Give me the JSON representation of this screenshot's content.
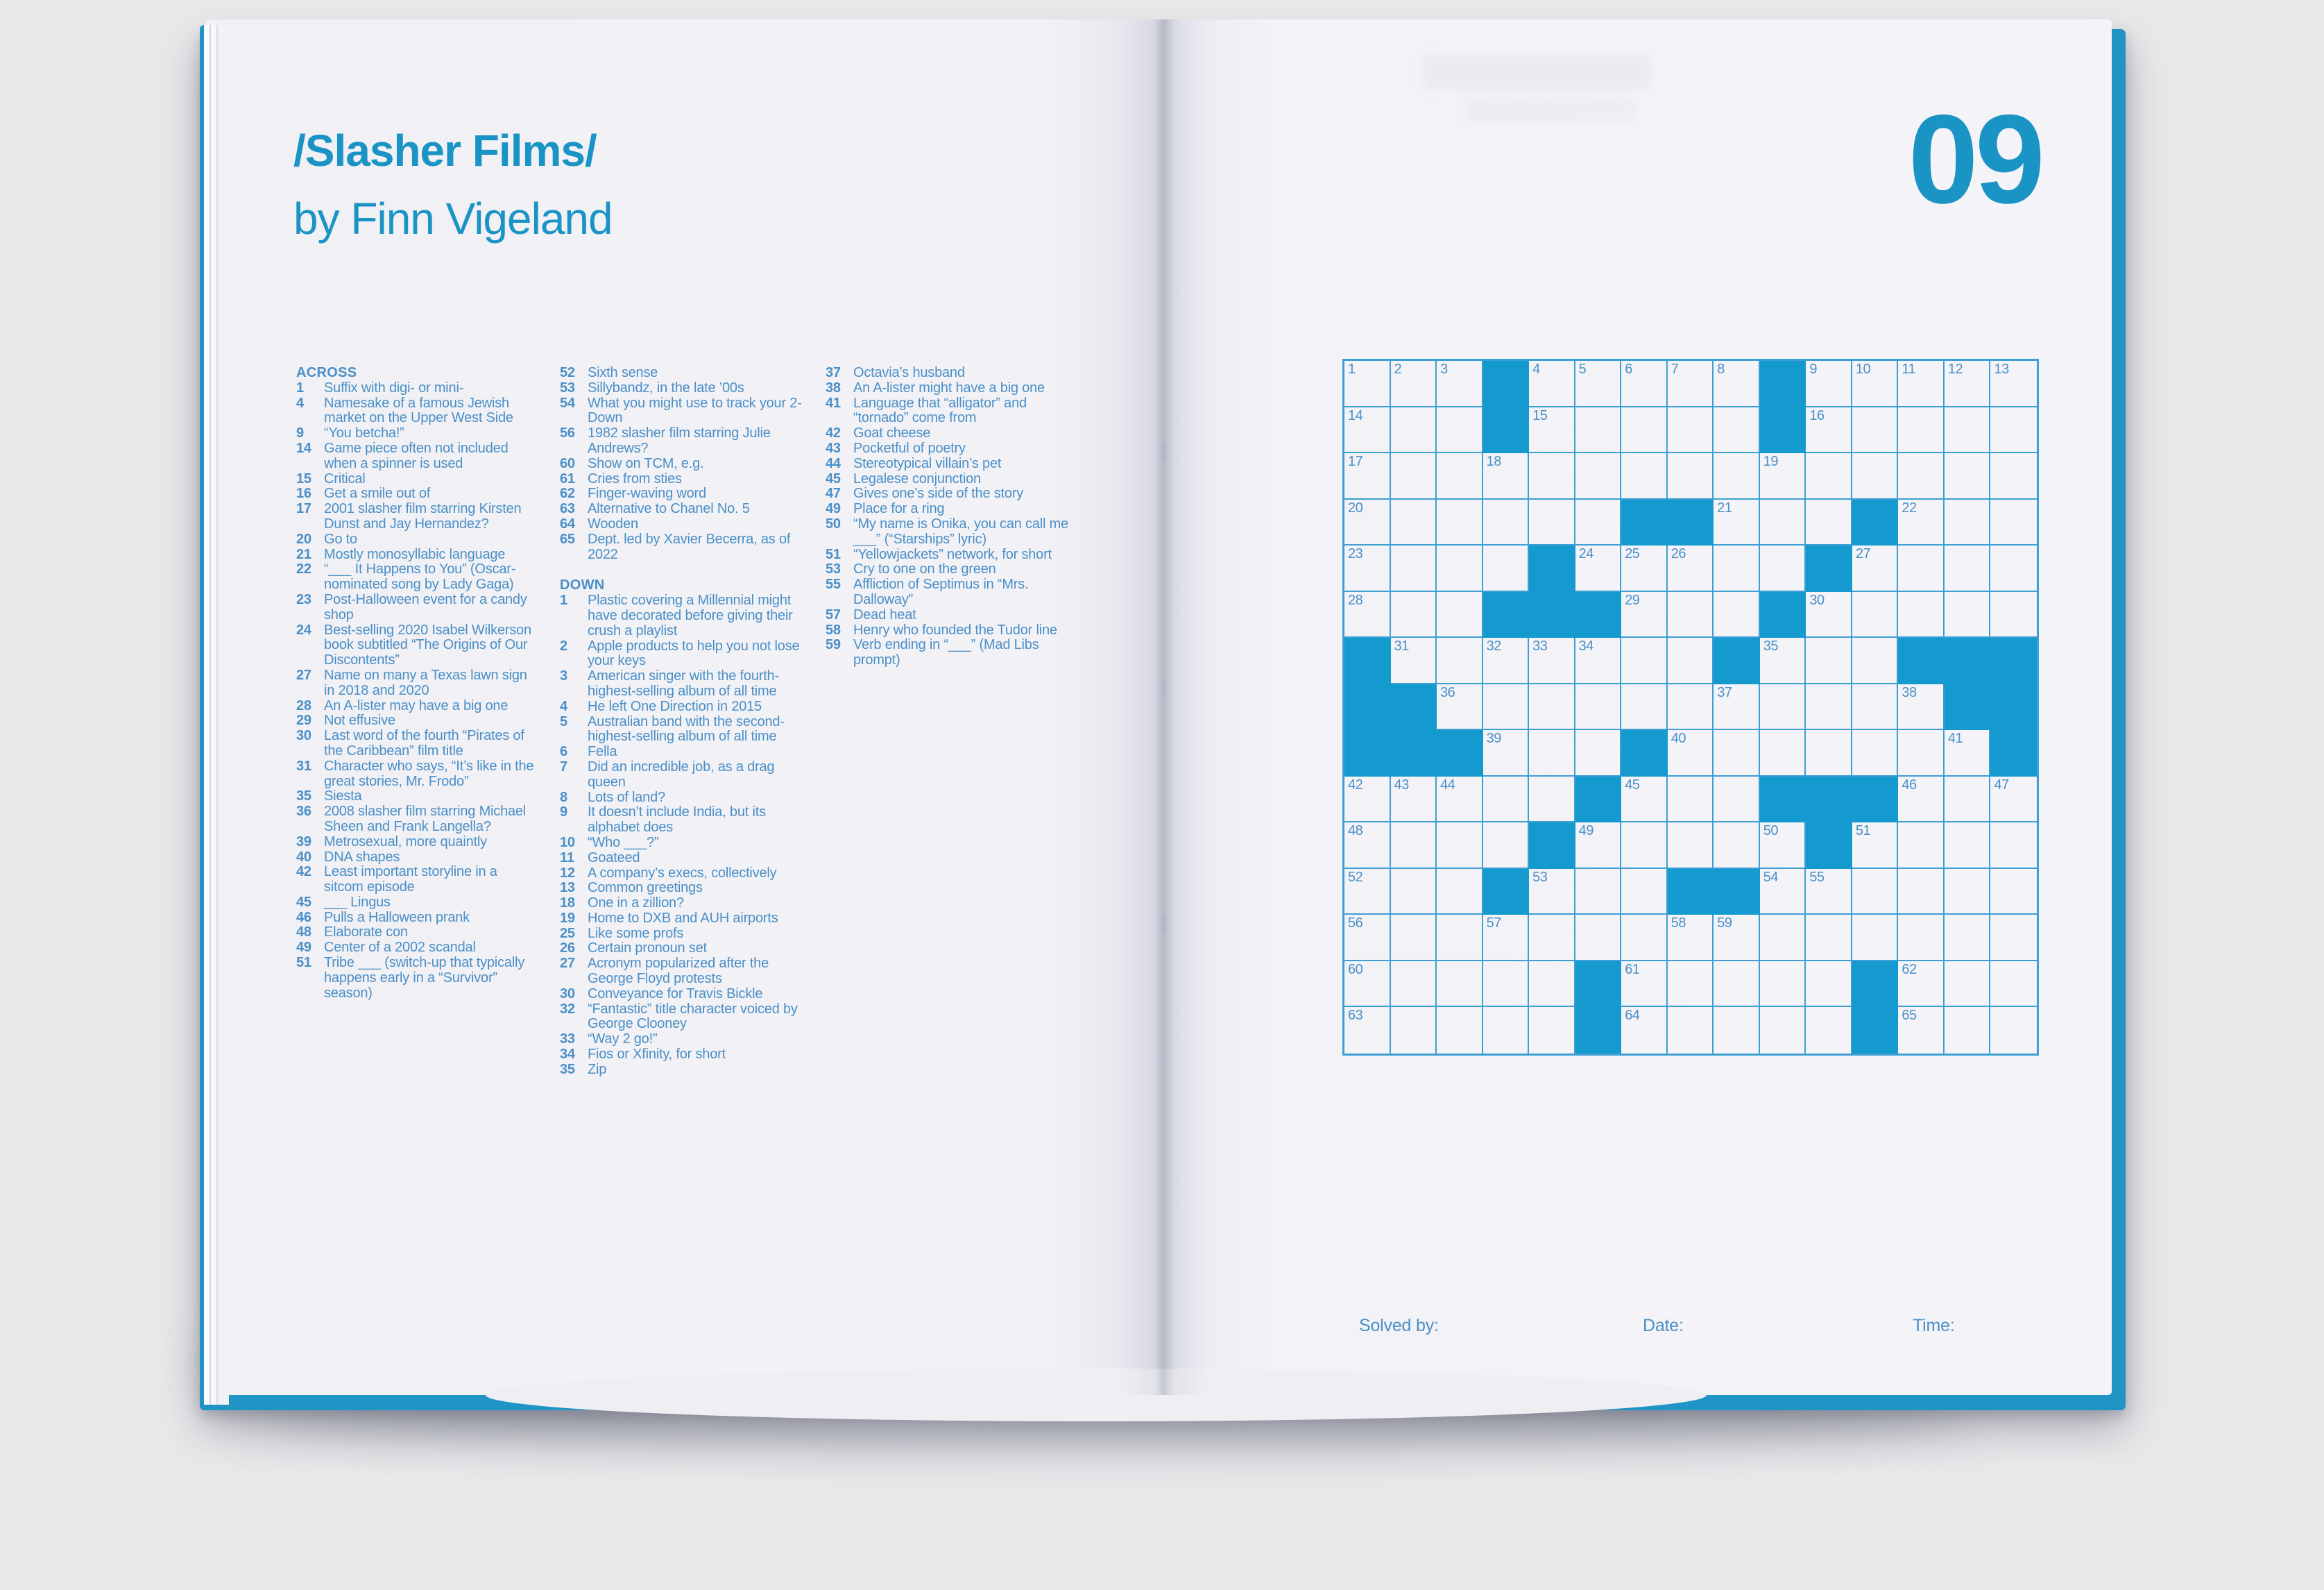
{
  "book": {
    "page_number": "09",
    "title_line1": "/Slasher Films/",
    "title_line2": "by Finn Vigeland",
    "footer": {
      "solved_by": "Solved by:",
      "date": "Date:",
      "time": "Time:"
    }
  },
  "colors": {
    "accent": "#1a93c5",
    "clue_text": "#4a8fc7",
    "grid_line": "#3d9fd3",
    "block_fill": "#149ace",
    "cover_teal": "#2095c5"
  },
  "clues": {
    "across_header": "ACROSS",
    "down_header": "DOWN",
    "across": [
      {
        "num": "1",
        "text": "Suffix with digi- or mini-"
      },
      {
        "num": "4",
        "text": "Namesake of a famous Jewish market on the Upper West Side"
      },
      {
        "num": "9",
        "text": "“You betcha!”"
      },
      {
        "num": "14",
        "text": "Game piece often not included when a spinner is used"
      },
      {
        "num": "15",
        "text": "Critical"
      },
      {
        "num": "16",
        "text": "Get a smile out of"
      },
      {
        "num": "17",
        "text": "2001 slasher film starring Kirsten Dunst and Jay Hernandez?"
      },
      {
        "num": "20",
        "text": "Go to"
      },
      {
        "num": "21",
        "text": "Mostly monosyllabic language"
      },
      {
        "num": "22",
        "text": "“___ It Happens to You” (Oscar-nominated song by Lady Gaga)"
      },
      {
        "num": "23",
        "text": "Post-Halloween event for a candy shop"
      },
      {
        "num": "24",
        "text": "Best-selling 2020 Isabel Wilkerson book subtitled “The Origins of Our Discontents”"
      },
      {
        "num": "27",
        "text": "Name on many a Texas lawn sign in 2018 and 2020"
      },
      {
        "num": "28",
        "text": "An A-lister may have a big one"
      },
      {
        "num": "29",
        "text": "Not effusive"
      },
      {
        "num": "30",
        "text": "Last word of the fourth “Pirates of the Caribbean” film title"
      },
      {
        "num": "31",
        "text": "Character who says, “It’s like in the great stories, Mr. Frodo”"
      },
      {
        "num": "35",
        "text": "Siesta"
      },
      {
        "num": "36",
        "text": "2008 slasher film starring Michael Sheen and Frank Langella?"
      },
      {
        "num": "39",
        "text": "Metrosexual, more quaintly"
      },
      {
        "num": "40",
        "text": "DNA shapes"
      },
      {
        "num": "42",
        "text": "Least important storyline in a sitcom episode"
      },
      {
        "num": "45",
        "text": "___ Lingus"
      },
      {
        "num": "46",
        "text": "Pulls a Halloween prank"
      },
      {
        "num": "48",
        "text": "Elaborate con"
      },
      {
        "num": "49",
        "text": "Center of a 2002 scandal"
      },
      {
        "num": "51",
        "text": "Tribe ___ (switch-up that typically happens early in a “Survivor” season)"
      },
      {
        "num": "52",
        "text": "Sixth sense"
      },
      {
        "num": "53",
        "text": "Sillybandz, in the late ’00s"
      },
      {
        "num": "54",
        "text": "What you might use to track your 2-Down"
      },
      {
        "num": "56",
        "text": "1982 slasher film starring Julie Andrews?"
      },
      {
        "num": "60",
        "text": "Show on TCM, e.g."
      },
      {
        "num": "61",
        "text": "Cries from sties"
      },
      {
        "num": "62",
        "text": "Finger-waving word"
      },
      {
        "num": "63",
        "text": "Alternative to Chanel No. 5"
      },
      {
        "num": "64",
        "text": "Wooden"
      },
      {
        "num": "65",
        "text": "Dept. led by Xavier Becerra, as of 2022"
      }
    ],
    "down": [
      {
        "num": "1",
        "text": "Plastic covering a Millennial might have decorated before giving their crush a playlist"
      },
      {
        "num": "2",
        "text": "Apple products to help you not lose your keys"
      },
      {
        "num": "3",
        "text": "American singer with the fourth-highest-selling album of all time"
      },
      {
        "num": "4",
        "text": "He left One Direction in 2015"
      },
      {
        "num": "5",
        "text": "Australian band with the second-highest-selling album of all time"
      },
      {
        "num": "6",
        "text": "Fella"
      },
      {
        "num": "7",
        "text": "Did an incredible job, as a drag queen"
      },
      {
        "num": "8",
        "text": "Lots of land?"
      },
      {
        "num": "9",
        "text": "It doesn’t include India, but its alphabet does"
      },
      {
        "num": "10",
        "text": "“Who ___?”"
      },
      {
        "num": "11",
        "text": "Goateed"
      },
      {
        "num": "12",
        "text": "A company’s execs, collectively"
      },
      {
        "num": "13",
        "text": "Common greetings"
      },
      {
        "num": "18",
        "text": "One in a zillion?"
      },
      {
        "num": "19",
        "text": "Home to DXB and AUH airports"
      },
      {
        "num": "25",
        "text": "Like some profs"
      },
      {
        "num": "26",
        "text": "Certain pronoun set"
      },
      {
        "num": "27",
        "text": "Acronym popularized after the George Floyd protests"
      },
      {
        "num": "30",
        "text": "Conveyance for Travis Bickle"
      },
      {
        "num": "32",
        "text": "“Fantastic” title character voiced by George Clooney"
      },
      {
        "num": "33",
        "text": "“Way 2 go!”"
      },
      {
        "num": "34",
        "text": "Fios or Xfinity, for short"
      },
      {
        "num": "35",
        "text": "Zip"
      },
      {
        "num": "37",
        "text": "Octavia’s husband"
      },
      {
        "num": "38",
        "text": "An A-lister might have a big one"
      },
      {
        "num": "41",
        "text": "Language that “alligator” and “tornado” come from"
      },
      {
        "num": "42",
        "text": "Goat cheese"
      },
      {
        "num": "43",
        "text": "Pocketful of poetry"
      },
      {
        "num": "44",
        "text": "Stereotypical villain’s pet"
      },
      {
        "num": "45",
        "text": "Legalese conjunction"
      },
      {
        "num": "47",
        "text": "Gives one’s side of the story"
      },
      {
        "num": "49",
        "text": "Place for a ring"
      },
      {
        "num": "50",
        "text": "“My name is Onika, you can call me ___” (“Starships” lyric)"
      },
      {
        "num": "51",
        "text": "“Yellowjackets” network, for short"
      },
      {
        "num": "53",
        "text": "Cry to one on the green"
      },
      {
        "num": "55",
        "text": "Affliction of Septimus in “Mrs. Dalloway”"
      },
      {
        "num": "57",
        "text": "Dead heat"
      },
      {
        "num": "58",
        "text": "Henry who founded the Tudor line"
      },
      {
        "num": "59",
        "text": "Verb ending in “___” (Mad Libs prompt)"
      }
    ]
  },
  "grid": {
    "size": 15,
    "rows": [
      "...#.....#.....",
      "...#.....#.....",
      "...............",
      "......##...#...",
      "....#.....#....",
      "...###...#.....",
      "#.......#...###",
      "##...........##",
      "###...#.......#",
      ".....#...###...",
      "....#.....#....",
      "...#...##......",
      "...............",
      ".....#.....#...",
      ".....#.....#..."
    ],
    "numbers": [
      [
        1,
        1,
        "1"
      ],
      [
        1,
        2,
        "2"
      ],
      [
        1,
        3,
        "3"
      ],
      [
        1,
        5,
        "4"
      ],
      [
        1,
        6,
        "5"
      ],
      [
        1,
        7,
        "6"
      ],
      [
        1,
        8,
        "7"
      ],
      [
        1,
        9,
        "8"
      ],
      [
        1,
        11,
        "9"
      ],
      [
        1,
        12,
        "10"
      ],
      [
        1,
        13,
        "11"
      ],
      [
        1,
        14,
        "12"
      ],
      [
        1,
        15,
        "13"
      ],
      [
        2,
        1,
        "14"
      ],
      [
        2,
        5,
        "15"
      ],
      [
        2,
        11,
        "16"
      ],
      [
        3,
        1,
        "17"
      ],
      [
        3,
        4,
        "18"
      ],
      [
        3,
        10,
        "19"
      ],
      [
        4,
        1,
        "20"
      ],
      [
        4,
        9,
        "21"
      ],
      [
        4,
        13,
        "22"
      ],
      [
        5,
        1,
        "23"
      ],
      [
        5,
        6,
        "24"
      ],
      [
        5,
        7,
        "25"
      ],
      [
        5,
        8,
        "26"
      ],
      [
        5,
        12,
        "27"
      ],
      [
        6,
        1,
        "28"
      ],
      [
        6,
        7,
        "29"
      ],
      [
        6,
        11,
        "30"
      ],
      [
        7,
        2,
        "31"
      ],
      [
        7,
        4,
        "32"
      ],
      [
        7,
        5,
        "33"
      ],
      [
        7,
        6,
        "34"
      ],
      [
        7,
        10,
        "35"
      ],
      [
        8,
        3,
        "36"
      ],
      [
        8,
        9,
        "37"
      ],
      [
        8,
        13,
        "38"
      ],
      [
        9,
        4,
        "39"
      ],
      [
        9,
        8,
        "40"
      ],
      [
        9,
        14,
        "41"
      ],
      [
        10,
        1,
        "42"
      ],
      [
        10,
        2,
        "43"
      ],
      [
        10,
        3,
        "44"
      ],
      [
        10,
        7,
        "45"
      ],
      [
        10,
        13,
        "46"
      ],
      [
        10,
        15,
        "47"
      ],
      [
        11,
        1,
        "48"
      ],
      [
        11,
        6,
        "49"
      ],
      [
        11,
        10,
        "50"
      ],
      [
        11,
        12,
        "51"
      ],
      [
        12,
        1,
        "52"
      ],
      [
        12,
        5,
        "53"
      ],
      [
        12,
        10,
        "54"
      ],
      [
        12,
        11,
        "55"
      ],
      [
        13,
        1,
        "56"
      ],
      [
        13,
        4,
        "57"
      ],
      [
        13,
        8,
        "58"
      ],
      [
        13,
        9,
        "59"
      ],
      [
        14,
        1,
        "60"
      ],
      [
        14,
        7,
        "61"
      ],
      [
        14,
        13,
        "62"
      ],
      [
        15,
        1,
        "63"
      ],
      [
        15,
        7,
        "64"
      ],
      [
        15,
        13,
        "65"
      ]
    ]
  }
}
